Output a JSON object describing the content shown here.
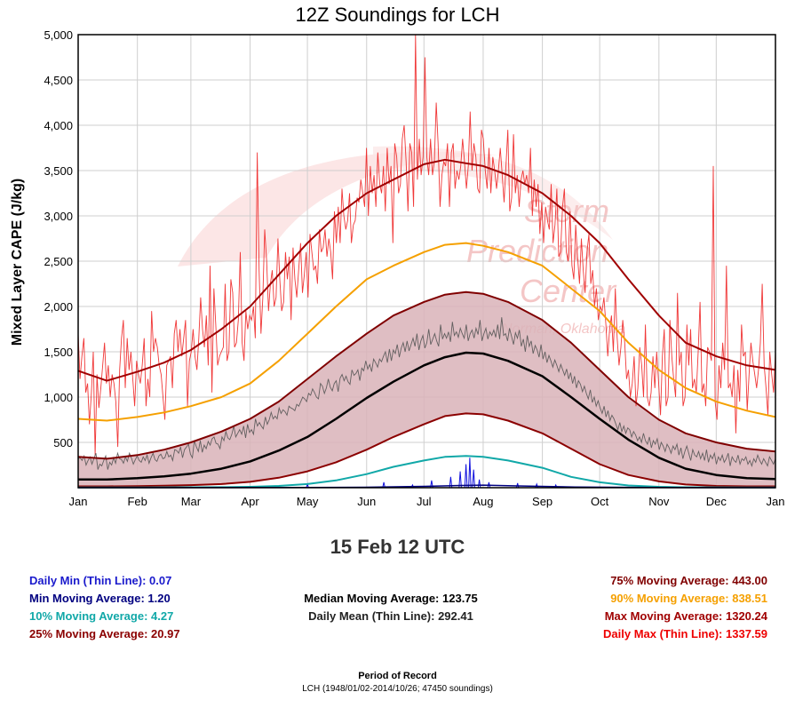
{
  "chart_data": {
    "type": "line",
    "title": "12Z Soundings for LCH",
    "ylabel": "Mixed Layer CAPE (J/kg)",
    "xlabel": "",
    "ylim": [
      0,
      5000
    ],
    "xlim": [
      0,
      365
    ],
    "grid": true,
    "x_tick_labels": [
      "Jan",
      "Feb",
      "Mar",
      "Apr",
      "May",
      "Jun",
      "Jul",
      "Aug",
      "Sep",
      "Oct",
      "Nov",
      "Dec",
      "Jan"
    ],
    "x_tick_days": [
      0,
      31,
      59,
      90,
      120,
      151,
      181,
      212,
      243,
      273,
      304,
      334,
      365
    ],
    "y_ticks": [
      500,
      1000,
      1500,
      2000,
      2500,
      3000,
      3500,
      4000,
      4500,
      5000
    ],
    "y_tick_labels": [
      "500",
      "1,000",
      "1,500",
      "2,000",
      "2,500",
      "3,000",
      "3,500",
      "4,000",
      "4,500",
      "5,000"
    ],
    "series": [
      {
        "name": "Max Moving Average",
        "color": "#a00000",
        "width": 2,
        "x": [
          0,
          15,
          31,
          45,
          59,
          75,
          90,
          105,
          120,
          135,
          151,
          165,
          181,
          192,
          203,
          212,
          225,
          243,
          258,
          273,
          288,
          304,
          318,
          334,
          350,
          365
        ],
        "y": [
          1290,
          1180,
          1280,
          1380,
          1520,
          1750,
          2000,
          2350,
          2700,
          3000,
          3250,
          3400,
          3570,
          3620,
          3580,
          3550,
          3450,
          3250,
          3000,
          2700,
          2300,
          1900,
          1600,
          1450,
          1350,
          1300
        ]
      },
      {
        "name": "90% Moving Average",
        "color": "#f5a000",
        "width": 2,
        "x": [
          0,
          15,
          31,
          45,
          59,
          75,
          90,
          105,
          120,
          135,
          151,
          165,
          181,
          192,
          203,
          212,
          225,
          243,
          258,
          273,
          288,
          304,
          318,
          334,
          350,
          365
        ],
        "y": [
          760,
          740,
          780,
          830,
          900,
          1000,
          1150,
          1400,
          1700,
          2000,
          2300,
          2450,
          2600,
          2680,
          2700,
          2670,
          2600,
          2450,
          2200,
          1950,
          1600,
          1300,
          1100,
          950,
          850,
          780
        ]
      },
      {
        "name": "75% Moving Average",
        "color": "#800000",
        "width": 2,
        "x": [
          0,
          15,
          31,
          45,
          59,
          75,
          90,
          105,
          120,
          135,
          151,
          165,
          181,
          192,
          203,
          212,
          225,
          243,
          258,
          273,
          288,
          304,
          318,
          334,
          350,
          365
        ],
        "y": [
          340,
          320,
          360,
          420,
          500,
          620,
          760,
          950,
          1200,
          1450,
          1700,
          1900,
          2050,
          2130,
          2160,
          2140,
          2050,
          1850,
          1600,
          1300,
          1000,
          750,
          600,
          500,
          430,
          400
        ]
      },
      {
        "name": "Median Moving Average",
        "color": "#000000",
        "width": 2.5,
        "x": [
          0,
          15,
          31,
          45,
          59,
          75,
          90,
          105,
          120,
          135,
          151,
          165,
          181,
          192,
          203,
          212,
          225,
          243,
          258,
          273,
          288,
          304,
          318,
          334,
          350,
          365
        ],
        "y": [
          90,
          90,
          105,
          125,
          155,
          210,
          290,
          410,
          560,
          760,
          990,
          1170,
          1350,
          1440,
          1490,
          1480,
          1400,
          1230,
          1000,
          760,
          530,
          330,
          210,
          140,
          105,
          95
        ]
      },
      {
        "name": "25% Moving Average",
        "color": "#8b0000",
        "width": 2,
        "x": [
          0,
          15,
          31,
          45,
          59,
          75,
          90,
          105,
          120,
          135,
          151,
          165,
          181,
          192,
          203,
          212,
          225,
          243,
          258,
          273,
          288,
          304,
          318,
          334,
          350,
          365
        ],
        "y": [
          15,
          15,
          18,
          22,
          28,
          40,
          65,
          110,
          180,
          280,
          420,
          560,
          700,
          790,
          820,
          810,
          740,
          600,
          430,
          260,
          140,
          70,
          35,
          20,
          15,
          15
        ]
      },
      {
        "name": "10% Moving Average",
        "color": "#11a8a8",
        "width": 2,
        "x": [
          0,
          15,
          31,
          45,
          59,
          75,
          90,
          105,
          120,
          135,
          151,
          165,
          181,
          192,
          203,
          212,
          225,
          243,
          258,
          273,
          288,
          304,
          318,
          334,
          350,
          365
        ],
        "y": [
          3,
          3,
          3,
          4,
          5,
          6,
          10,
          20,
          40,
          80,
          150,
          230,
          300,
          340,
          350,
          340,
          300,
          220,
          120,
          60,
          25,
          10,
          5,
          4,
          3,
          3
        ]
      },
      {
        "name": "Min Moving Average",
        "color": "#000080",
        "width": 1.5,
        "x": [
          0,
          60,
          120,
          150,
          181,
          200,
          212,
          230,
          260,
          300,
          365
        ],
        "y": [
          1,
          1,
          2,
          5,
          15,
          25,
          28,
          20,
          8,
          2,
          1
        ]
      }
    ],
    "daily_max_thin": {
      "name": "Daily Max (Thin Line)",
      "color": "#ee2222",
      "y": [
        1700,
        1200,
        1450,
        1650,
        1050,
        1150,
        700,
        1050,
        1500,
        350,
        1250,
        880,
        1100,
        1350,
        1600,
        1150,
        1350,
        1000,
        1250,
        1150,
        950,
        450,
        1300,
        1650,
        1850,
        1100,
        1650,
        1300,
        1500,
        1200,
        900,
        1400,
        1250,
        1150,
        1350,
        1650,
        900,
        1200,
        1000,
        1950,
        1500,
        1650,
        1550,
        1350,
        1250,
        1000,
        750,
        1350,
        1400,
        1450,
        1100,
        1700,
        1850,
        1500,
        1750,
        1450,
        1650,
        1850,
        900,
        1400,
        1500,
        1750,
        1450,
        1300,
        1650,
        2100,
        1750,
        1550,
        1900,
        1350,
        2450,
        1050,
        2200,
        1800,
        1350,
        1450,
        1500,
        1550,
        2250,
        1400,
        1500,
        2300,
        2150,
        1550,
        1600,
        1850,
        2600,
        1600,
        1400,
        1950,
        1750,
        1900,
        1850,
        2000,
        1650,
        3700,
        2400,
        1700,
        2100,
        2850,
        2500,
        1950,
        2250,
        2400,
        2000,
        2100,
        2750,
        2300,
        1950,
        2050,
        2600,
        2300,
        2550,
        1850,
        2650,
        2300,
        2100,
        2400,
        2700,
        2150,
        2350,
        2600,
        2100,
        2800,
        2600,
        2400,
        2450,
        2250,
        2850,
        2600,
        2650,
        2850,
        2550,
        2750,
        2600,
        2300,
        3050,
        2700,
        3100,
        2700,
        3300,
        3000,
        2850,
        2950,
        3250,
        2700,
        2900,
        2950,
        3200,
        3150,
        3400,
        3250,
        3100,
        3750,
        3000,
        3550,
        3250,
        3450,
        3100,
        3700,
        3350,
        3250,
        3550,
        3050,
        3750,
        3350,
        3550,
        2700,
        3800,
        3650,
        3250,
        3350,
        3850,
        4000,
        3600,
        3050,
        3800,
        3700,
        3100,
        5000,
        3400,
        3850,
        3450,
        3650,
        4750,
        3650,
        3450,
        3850,
        3450,
        3600,
        4250,
        3800,
        3100,
        3450,
        3600,
        3550,
        3800,
        3100,
        3700,
        3800,
        3300,
        3500,
        3400,
        3550,
        3850,
        3600,
        3300,
        3550,
        4150,
        3500,
        3800,
        3650,
        3300,
        3250,
        3950,
        3850,
        3500,
        3300,
        3750,
        3250,
        3650,
        3500,
        3300,
        3500,
        3750,
        3450,
        3150,
        3550,
        3950,
        3050,
        3200,
        3900,
        3250,
        3450,
        3100,
        3400,
        3500,
        3350,
        3450,
        3250,
        3750,
        3000,
        3400,
        3100,
        3350,
        2800,
        3150,
        2700,
        3100,
        2950,
        2850,
        3350,
        2700,
        2900,
        3300,
        2550,
        2600,
        3100,
        3300,
        2600,
        2500,
        3050,
        2450,
        2300,
        2900,
        2550,
        2250,
        2750,
        2400,
        2150,
        2600,
        2800,
        2250,
        2400,
        2000,
        2200,
        1850,
        2000,
        1950,
        2100,
        1800,
        1450,
        1750,
        1900,
        1500,
        2200,
        1650,
        1350,
        1550,
        1850,
        1600,
        1200,
        1300,
        1000,
        1150,
        1450,
        900,
        1100,
        1550,
        1350,
        1000,
        1800,
        1000,
        900,
        1050,
        1450,
        1100,
        1500,
        1150,
        800,
        1450,
        1750,
        900,
        1000,
        1850,
        1450,
        1200,
        1000,
        2150,
        1350,
        1500,
        900,
        1000,
        1800,
        1350,
        1750,
        1100,
        1200,
        1050,
        1500,
        2050,
        1050,
        1150,
        900,
        1550,
        1500,
        1400,
        3550,
        950,
        750,
        1350,
        1100,
        1600,
        1300,
        2450,
        1100,
        1150,
        1000,
        1350,
        600,
        1300,
        950,
        1800,
        1450,
        1500,
        850,
        1250,
        1600,
        1400,
        1250,
        1100,
        1300,
        1600,
        2250,
        1350,
        1100,
        800,
        1500,
        1250,
        1050,
        1500
      ]
    },
    "daily_mean_thin": {
      "name": "Daily Mean (Thin Line)",
      "color": "#555555",
      "y": [
        320,
        330,
        300,
        350,
        250,
        300,
        340,
        260,
        320,
        380,
        200,
        260,
        240,
        300,
        350,
        200,
        280,
        250,
        330,
        270,
        380,
        320,
        310,
        270,
        340,
        290,
        380,
        330,
        260,
        310,
        350,
        300,
        280,
        340,
        300,
        360,
        270,
        330,
        380,
        310,
        290,
        350,
        370,
        320,
        330,
        400,
        340,
        360,
        300,
        420,
        410,
        380,
        450,
        330,
        420,
        450,
        480,
        370,
        330,
        520,
        450,
        400,
        520,
        390,
        470,
        430,
        510,
        470,
        540,
        560,
        490,
        480,
        430,
        560,
        520,
        620,
        550,
        530,
        590,
        680,
        560,
        600,
        640,
        590,
        680,
        550,
        700,
        610,
        640,
        590,
        760,
        680,
        720,
        680,
        650,
        780,
        700,
        750,
        830,
        760,
        790,
        760,
        880,
        820,
        860,
        840,
        800,
        900,
        880,
        870,
        850,
        920,
        900,
        950,
        1000,
        980,
        950,
        1040,
        1020,
        1090,
        1050,
        1000,
        980,
        1150,
        1120,
        1040,
        1100,
        1200,
        1110,
        1070,
        1150,
        1180,
        1060,
        1210,
        1250,
        1180,
        1230,
        1170,
        1140,
        1300,
        1240,
        1260,
        1300,
        1180,
        1320,
        1290,
        1400,
        1310,
        1360,
        1280,
        1420,
        1380,
        1330,
        1420,
        1390,
        1450,
        1500,
        1380,
        1530,
        1400,
        1520,
        1480,
        1580,
        1440,
        1540,
        1600,
        1500,
        1620,
        1510,
        1580,
        1650,
        1560,
        1700,
        1520,
        1620,
        1680,
        1540,
        1600,
        1750,
        1580,
        1640,
        1700,
        1620,
        1560,
        1800,
        1640,
        1700,
        1650,
        1720,
        1610,
        1830,
        1680,
        1720,
        1660,
        1760,
        1700,
        1650,
        1800,
        1620,
        1700,
        1740,
        1650,
        1760,
        1690,
        1850,
        1620,
        1700,
        1760,
        1640,
        1720,
        1680,
        1740,
        1660,
        1800,
        1640,
        1880,
        1680,
        1700,
        1620,
        1760,
        1670,
        1580,
        1710,
        1650,
        1740,
        1560,
        1640,
        1500,
        1680,
        1560,
        1620,
        1480,
        1570,
        1520,
        1440,
        1580,
        1420,
        1500,
        1380,
        1460,
        1400,
        1330,
        1410,
        1350,
        1280,
        1360,
        1300,
        1240,
        1310,
        1200,
        1270,
        1150,
        1230,
        1100,
        1180,
        1140,
        1060,
        1120,
        1040,
        980,
        1080,
        940,
        1000,
        900,
        960,
        880,
        820,
        900,
        780,
        850,
        740,
        800,
        760,
        700,
        640,
        720,
        620,
        680,
        600,
        660,
        640,
        560,
        620,
        580,
        520,
        560,
        500,
        600,
        520,
        480,
        560,
        440,
        520,
        480,
        540,
        420,
        500,
        460,
        400,
        480,
        440,
        380,
        460,
        420,
        480,
        360,
        440,
        320,
        400,
        460,
        380,
        300,
        420,
        360,
        340,
        400,
        320,
        380,
        300,
        420,
        280,
        360,
        320,
        380,
        260,
        340,
        300,
        360,
        280,
        320,
        380,
        240,
        340,
        300,
        280,
        360,
        260,
        320,
        300,
        340,
        260,
        300,
        240,
        320,
        280,
        360,
        300,
        260,
        320,
        280,
        240,
        340,
        300,
        260,
        320
      ]
    },
    "daily_min_thin": {
      "name": "Daily Min (Thin Line)",
      "color": "#1010dd",
      "spikes": [
        [
          120,
          40
        ],
        [
          160,
          60
        ],
        [
          175,
          30
        ],
        [
          185,
          80
        ],
        [
          195,
          120
        ],
        [
          200,
          180
        ],
        [
          203,
          260
        ],
        [
          205,
          330
        ],
        [
          207,
          200
        ],
        [
          210,
          90
        ],
        [
          215,
          60
        ],
        [
          230,
          50
        ],
        [
          240,
          40
        ],
        [
          250,
          30
        ]
      ]
    }
  },
  "date_label": "15 Feb 12 UTC",
  "stats": {
    "daily_min": "Daily Min (Thin Line): 0.07",
    "min_ma": "Min Moving Average: 1.20",
    "p10_ma": "10% Moving Average: 4.27",
    "p25_ma": "25% Moving Average: 20.97",
    "median_ma": "Median Moving Average: 123.75",
    "daily_mean": "Daily Mean (Thin Line): 292.41",
    "p75_ma": "75% Moving Average: 443.00",
    "p90_ma": "90% Moving Average: 838.51",
    "max_ma": "Max Moving Average: 1320.24",
    "daily_max": "Daily Max (Thin Line): 1337.59"
  },
  "stat_colors": {
    "daily_min": "#1a1acc",
    "min_ma": "#000080",
    "p10_ma": "#11a8a8",
    "p25_ma": "#8b0000",
    "median_ma": "#000000",
    "daily_mean": "#222222",
    "p75_ma": "#800000",
    "p90_ma": "#f5a000",
    "max_ma": "#a00000",
    "daily_max": "#ee0000"
  },
  "band_fill": "#d9b3b8",
  "watermark": {
    "line1": "Storm",
    "line2": "Prediction",
    "line3": "Center",
    "line4": "Norman, Oklahoma"
  },
  "footer": {
    "title": "Period of Record",
    "subtitle": "LCH (1948/01/02-2014/10/26; 47450 soundings)"
  }
}
